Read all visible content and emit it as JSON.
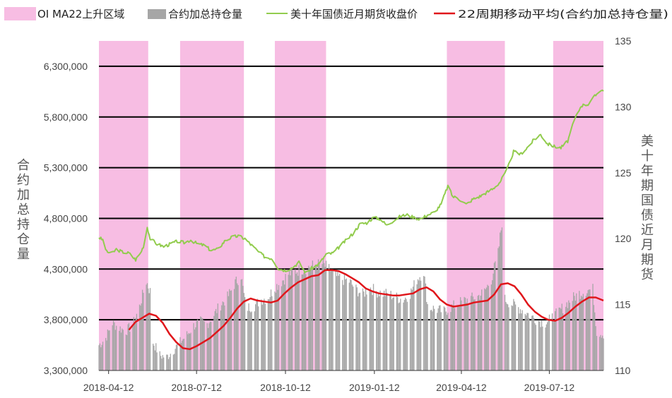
{
  "chart_data": {
    "type": "bar+line",
    "legend_position": "top",
    "grid": true,
    "colors": {
      "region": "#f7bde3",
      "bar": "#a6a6a6",
      "price": "#92cc4e",
      "ma": "#e0161b",
      "grid": "#000000"
    },
    "legend": [
      "OI MA22上升区域",
      "合约加总持仓量",
      "美十年国债近月期货收盘价",
      "22周期移动平均(合约加总持仓量)"
    ],
    "y_left": {
      "label": "合约加总持仓量",
      "min": 3300000,
      "max": 6550000,
      "ticks": [
        3300000,
        3800000,
        4300000,
        4800000,
        5300000,
        5800000,
        6300000
      ],
      "tick_labels": [
        "3,300,000",
        "3,800,000",
        "4,300,000",
        "4,800,000",
        "5,300,000",
        "5,800,000",
        "6,300,000"
      ]
    },
    "y_right": {
      "label": "美十年期国债近月期货",
      "min": 110,
      "max": 135,
      "ticks": [
        110,
        115,
        120,
        125,
        130,
        135
      ]
    },
    "x": {
      "start": "2018-04-02",
      "end": "2019-09-06",
      "tick_dates": [
        "2018-04-12",
        "2018-07-12",
        "2018-10-12",
        "2019-01-12",
        "2019-04-12",
        "2019-07-12"
      ]
    },
    "rising_regions": [
      [
        "2018-04-02",
        "2018-05-23"
      ],
      [
        "2018-06-25",
        "2018-08-30"
      ],
      [
        "2018-10-01",
        "2018-11-23"
      ],
      [
        "2019-03-28",
        "2019-05-27"
      ],
      [
        "2019-07-16",
        "2019-09-06"
      ]
    ],
    "open_interest_points": [
      [
        "2018-04-02",
        3550000
      ],
      [
        "2018-04-09",
        3620000
      ],
      [
        "2018-04-16",
        3770000
      ],
      [
        "2018-04-23",
        3720000
      ],
      [
        "2018-04-30",
        3690000
      ],
      [
        "2018-05-07",
        3750000
      ],
      [
        "2018-05-14",
        3930000
      ],
      [
        "2018-05-21",
        4180000
      ],
      [
        "2018-05-25",
        4080000
      ],
      [
        "2018-05-28",
        3580000
      ],
      [
        "2018-06-04",
        3450000
      ],
      [
        "2018-06-11",
        3430000
      ],
      [
        "2018-06-18",
        3500000
      ],
      [
        "2018-06-25",
        3580000
      ],
      [
        "2018-07-02",
        3650000
      ],
      [
        "2018-07-09",
        3740000
      ],
      [
        "2018-07-16",
        3780000
      ],
      [
        "2018-07-23",
        3760000
      ],
      [
        "2018-07-30",
        3850000
      ],
      [
        "2018-08-06",
        3950000
      ],
      [
        "2018-08-13",
        4020000
      ],
      [
        "2018-08-20",
        4150000
      ],
      [
        "2018-08-27",
        4240000
      ],
      [
        "2018-08-31",
        3980000
      ],
      [
        "2018-09-03",
        3920000
      ],
      [
        "2018-09-10",
        3940000
      ],
      [
        "2018-09-17",
        4000000
      ],
      [
        "2018-09-24",
        4020000
      ],
      [
        "2018-10-01",
        4120000
      ],
      [
        "2018-10-08",
        4180000
      ],
      [
        "2018-10-15",
        4250000
      ],
      [
        "2018-10-22",
        4280000
      ],
      [
        "2018-10-29",
        4300000
      ],
      [
        "2018-11-05",
        4320000
      ],
      [
        "2018-11-12",
        4340000
      ],
      [
        "2018-11-19",
        4350000
      ],
      [
        "2018-11-26",
        4300000
      ],
      [
        "2018-12-03",
        4230000
      ],
      [
        "2018-12-10",
        4200000
      ],
      [
        "2018-12-17",
        4180000
      ],
      [
        "2018-12-24",
        4100000
      ],
      [
        "2018-12-31",
        4050000
      ],
      [
        "2019-01-07",
        4120000
      ],
      [
        "2019-01-14",
        4080000
      ],
      [
        "2019-01-21",
        4060000
      ],
      [
        "2019-01-28",
        4050000
      ],
      [
        "2019-02-04",
        4020000
      ],
      [
        "2019-02-11",
        4000000
      ],
      [
        "2019-02-18",
        4060000
      ],
      [
        "2019-02-25",
        4200000
      ],
      [
        "2019-03-04",
        4280000
      ],
      [
        "2019-03-08",
        3950000
      ],
      [
        "2019-03-11",
        3920000
      ],
      [
        "2019-03-18",
        3900000
      ],
      [
        "2019-03-25",
        3880000
      ],
      [
        "2019-04-01",
        3920000
      ],
      [
        "2019-04-08",
        3960000
      ],
      [
        "2019-04-15",
        3990000
      ],
      [
        "2019-04-22",
        4010000
      ],
      [
        "2019-04-29",
        4030000
      ],
      [
        "2019-05-06",
        4080000
      ],
      [
        "2019-05-13",
        4200000
      ],
      [
        "2019-05-20",
        4450000
      ],
      [
        "2019-05-24",
        4770000
      ],
      [
        "2019-05-27",
        4000000
      ],
      [
        "2019-06-03",
        3960000
      ],
      [
        "2019-06-10",
        3920000
      ],
      [
        "2019-06-17",
        3880000
      ],
      [
        "2019-06-24",
        3830000
      ],
      [
        "2019-07-01",
        3790000
      ],
      [
        "2019-07-08",
        3770000
      ],
      [
        "2019-07-15",
        3820000
      ],
      [
        "2019-07-22",
        3880000
      ],
      [
        "2019-07-29",
        3950000
      ],
      [
        "2019-08-05",
        4010000
      ],
      [
        "2019-08-12",
        4060000
      ],
      [
        "2019-08-19",
        4090000
      ],
      [
        "2019-08-26",
        4100000
      ],
      [
        "2019-08-30",
        3680000
      ],
      [
        "2019-09-06",
        3660000
      ]
    ],
    "price_points": [
      [
        "2018-04-02",
        120.1
      ],
      [
        "2018-04-06",
        119.9
      ],
      [
        "2018-04-10",
        119.0
      ],
      [
        "2018-04-16",
        118.9
      ],
      [
        "2018-04-20",
        119.2
      ],
      [
        "2018-04-26",
        119.0
      ],
      [
        "2018-05-03",
        118.9
      ],
      [
        "2018-05-10",
        118.4
      ],
      [
        "2018-05-15",
        118.9
      ],
      [
        "2018-05-19",
        119.6
      ],
      [
        "2018-05-22",
        120.9
      ],
      [
        "2018-05-25",
        120.0
      ],
      [
        "2018-06-01",
        119.6
      ],
      [
        "2018-06-08",
        119.4
      ],
      [
        "2018-06-15",
        119.6
      ],
      [
        "2018-06-22",
        119.8
      ],
      [
        "2018-06-29",
        119.7
      ],
      [
        "2018-07-06",
        119.9
      ],
      [
        "2018-07-13",
        119.6
      ],
      [
        "2018-07-20",
        119.5
      ],
      [
        "2018-07-27",
        119.1
      ],
      [
        "2018-08-03",
        119.2
      ],
      [
        "2018-08-10",
        119.8
      ],
      [
        "2018-08-17",
        120.1
      ],
      [
        "2018-08-24",
        120.2
      ],
      [
        "2018-08-31",
        120.0
      ],
      [
        "2018-09-07",
        119.5
      ],
      [
        "2018-09-14",
        119.0
      ],
      [
        "2018-09-21",
        118.6
      ],
      [
        "2018-09-28",
        118.5
      ],
      [
        "2018-10-05",
        117.7
      ],
      [
        "2018-10-12",
        117.6
      ],
      [
        "2018-10-19",
        117.8
      ],
      [
        "2018-10-26",
        118.2
      ],
      [
        "2018-11-02",
        117.4
      ],
      [
        "2018-11-09",
        117.8
      ],
      [
        "2018-11-16",
        118.1
      ],
      [
        "2018-11-23",
        118.8
      ],
      [
        "2018-11-30",
        118.9
      ],
      [
        "2018-12-07",
        119.4
      ],
      [
        "2018-12-14",
        119.9
      ],
      [
        "2018-12-21",
        120.4
      ],
      [
        "2018-12-28",
        121.1
      ],
      [
        "2019-01-04",
        121.2
      ],
      [
        "2019-01-11",
        121.6
      ],
      [
        "2019-01-18",
        121.5
      ],
      [
        "2019-01-25",
        121.0
      ],
      [
        "2019-02-01",
        121.4
      ],
      [
        "2019-02-08",
        121.7
      ],
      [
        "2019-02-15",
        121.8
      ],
      [
        "2019-02-22",
        121.6
      ],
      [
        "2019-03-01",
        121.5
      ],
      [
        "2019-03-08",
        121.8
      ],
      [
        "2019-03-15",
        122.0
      ],
      [
        "2019-03-22",
        122.6
      ],
      [
        "2019-03-29",
        124.0
      ],
      [
        "2019-04-03",
        123.2
      ],
      [
        "2019-04-10",
        123.0
      ],
      [
        "2019-04-17",
        122.6
      ],
      [
        "2019-04-24",
        123.0
      ],
      [
        "2019-05-01",
        123.2
      ],
      [
        "2019-05-08",
        123.5
      ],
      [
        "2019-05-15",
        123.8
      ],
      [
        "2019-05-22",
        124.3
      ],
      [
        "2019-05-29",
        125.2
      ],
      [
        "2019-06-05",
        126.6
      ],
      [
        "2019-06-12",
        126.4
      ],
      [
        "2019-06-19",
        126.9
      ],
      [
        "2019-06-26",
        127.5
      ],
      [
        "2019-07-03",
        127.9
      ],
      [
        "2019-07-10",
        127.2
      ],
      [
        "2019-07-17",
        127.0
      ],
      [
        "2019-07-24",
        126.9
      ],
      [
        "2019-07-31",
        127.4
      ],
      [
        "2019-08-07",
        129.0
      ],
      [
        "2019-08-14",
        130.1
      ],
      [
        "2019-08-21",
        130.2
      ],
      [
        "2019-08-28",
        130.8
      ],
      [
        "2019-09-03",
        131.3
      ],
      [
        "2019-09-06",
        131.2
      ]
    ],
    "ma22_points": [
      [
        "2018-05-03",
        3700000
      ],
      [
        "2018-05-10",
        3780000
      ],
      [
        "2018-05-17",
        3820000
      ],
      [
        "2018-05-24",
        3860000
      ],
      [
        "2018-05-31",
        3840000
      ],
      [
        "2018-06-07",
        3770000
      ],
      [
        "2018-06-14",
        3660000
      ],
      [
        "2018-06-21",
        3580000
      ],
      [
        "2018-06-28",
        3520000
      ],
      [
        "2018-07-05",
        3510000
      ],
      [
        "2018-07-12",
        3540000
      ],
      [
        "2018-07-19",
        3580000
      ],
      [
        "2018-07-26",
        3620000
      ],
      [
        "2018-08-02",
        3680000
      ],
      [
        "2018-08-09",
        3740000
      ],
      [
        "2018-08-16",
        3820000
      ],
      [
        "2018-08-23",
        3910000
      ],
      [
        "2018-08-30",
        3980000
      ],
      [
        "2018-09-06",
        4010000
      ],
      [
        "2018-09-13",
        3990000
      ],
      [
        "2018-09-20",
        3980000
      ],
      [
        "2018-09-27",
        3970000
      ],
      [
        "2018-10-04",
        3990000
      ],
      [
        "2018-10-11",
        4060000
      ],
      [
        "2018-10-18",
        4120000
      ],
      [
        "2018-10-25",
        4170000
      ],
      [
        "2018-11-01",
        4200000
      ],
      [
        "2018-11-08",
        4230000
      ],
      [
        "2018-11-15",
        4240000
      ],
      [
        "2018-11-22",
        4290000
      ],
      [
        "2018-11-29",
        4290000
      ],
      [
        "2018-12-06",
        4280000
      ],
      [
        "2018-12-13",
        4250000
      ],
      [
        "2018-12-20",
        4210000
      ],
      [
        "2018-12-27",
        4170000
      ],
      [
        "2019-01-03",
        4110000
      ],
      [
        "2019-01-10",
        4080000
      ],
      [
        "2019-01-17",
        4060000
      ],
      [
        "2019-01-24",
        4050000
      ],
      [
        "2019-01-31",
        4040000
      ],
      [
        "2019-02-07",
        4040000
      ],
      [
        "2019-02-14",
        4050000
      ],
      [
        "2019-02-21",
        4060000
      ],
      [
        "2019-02-28",
        4100000
      ],
      [
        "2019-03-07",
        4120000
      ],
      [
        "2019-03-14",
        4080000
      ],
      [
        "2019-03-21",
        4000000
      ],
      [
        "2019-03-28",
        3950000
      ],
      [
        "2019-04-04",
        3930000
      ],
      [
        "2019-04-11",
        3940000
      ],
      [
        "2019-04-18",
        3950000
      ],
      [
        "2019-04-25",
        3970000
      ],
      [
        "2019-05-02",
        3980000
      ],
      [
        "2019-05-09",
        3990000
      ],
      [
        "2019-05-16",
        4050000
      ],
      [
        "2019-05-23",
        4150000
      ],
      [
        "2019-05-30",
        4160000
      ],
      [
        "2019-06-06",
        4130000
      ],
      [
        "2019-06-13",
        4050000
      ],
      [
        "2019-06-20",
        3950000
      ],
      [
        "2019-06-27",
        3880000
      ],
      [
        "2019-07-04",
        3830000
      ],
      [
        "2019-07-11",
        3800000
      ],
      [
        "2019-07-18",
        3790000
      ],
      [
        "2019-07-25",
        3820000
      ],
      [
        "2019-08-01",
        3870000
      ],
      [
        "2019-08-08",
        3930000
      ],
      [
        "2019-08-15",
        3980000
      ],
      [
        "2019-08-22",
        4020000
      ],
      [
        "2019-08-29",
        4020000
      ],
      [
        "2019-09-06",
        3990000
      ]
    ]
  }
}
